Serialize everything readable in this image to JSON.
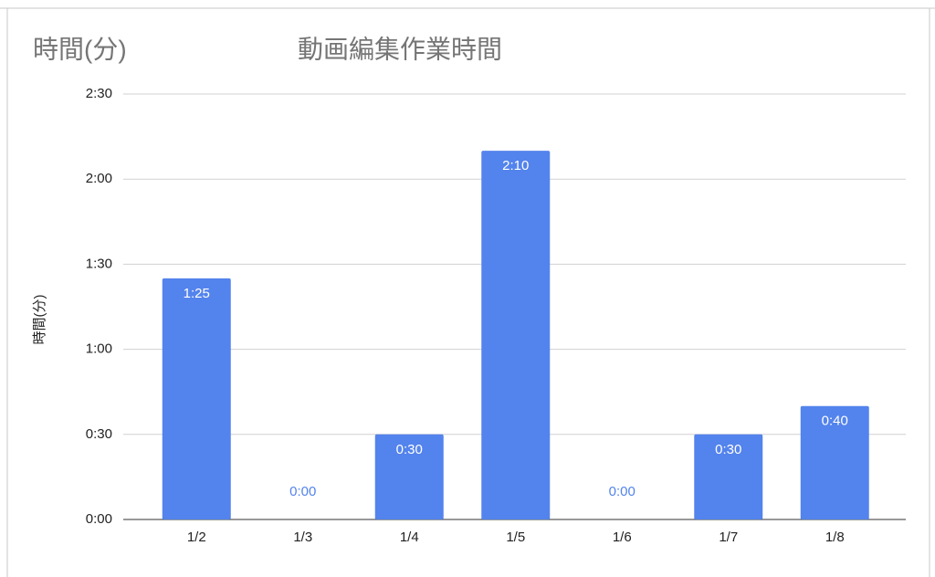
{
  "chart_data": {
    "type": "bar",
    "title": "動画編集作業時間",
    "y_label": "時間(分)",
    "categories": [
      "1/2",
      "1/3",
      "1/4",
      "1/5",
      "1/6",
      "1/7",
      "1/8"
    ],
    "series": [
      {
        "name": "時間(分)",
        "color": "#5383ec",
        "values": [
          85,
          0,
          30,
          130,
          0,
          30,
          40
        ],
        "value_labels": [
          "1:25",
          "0:00",
          "0:30",
          "2:10",
          "0:00",
          "0:30",
          "0:40"
        ]
      }
    ],
    "ylim": [
      0,
      150
    ],
    "yticks": [
      {
        "value": 0,
        "label": "0:00"
      },
      {
        "value": 30,
        "label": "0:30"
      },
      {
        "value": 60,
        "label": "1:00"
      },
      {
        "value": 90,
        "label": "1:30"
      },
      {
        "value": 120,
        "label": "2:00"
      },
      {
        "value": 150,
        "label": "2:30"
      }
    ],
    "grid": true
  }
}
